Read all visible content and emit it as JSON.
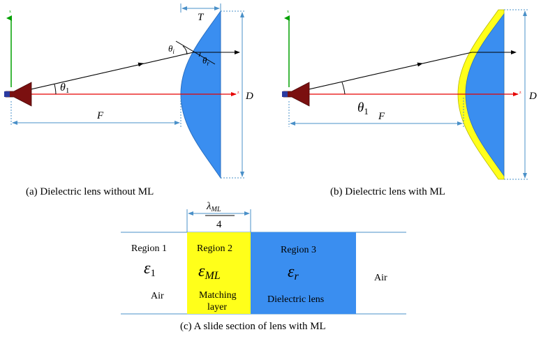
{
  "colors": {
    "lens_blue": "#3a8ef0",
    "matching_layer_yellow": "#ffff1a",
    "ray_red": "#e60000",
    "axis_green": "#00a000",
    "dimension_line": "#4a90c8",
    "horn_dark_red": "#7b1010"
  },
  "panel_a": {
    "caption": "(a) Dielectric lens without ML",
    "label_T": "T",
    "label_D": "D",
    "label_F": "F",
    "label_theta1": "θ",
    "label_theta1_sub": "1",
    "label_theta_i": "θ",
    "label_theta_i_sub": "i",
    "label_theta_r": "θ",
    "label_theta_r_sub": "r",
    "axis_x": "x",
    "axis_z": "z"
  },
  "panel_b": {
    "caption": "(b) Dielectric lens with ML",
    "label_D": "D",
    "label_F": "F",
    "label_theta1": "θ",
    "label_theta1_sub": "1",
    "axis_x": "x",
    "axis_z": "z"
  },
  "panel_c": {
    "caption": "(c) A slide section of lens with ML",
    "dim_numerator": "λ",
    "dim_numerator_sub": "ML",
    "dim_denominator": "4",
    "region1": {
      "title": "Region 1",
      "symbol": "ε",
      "symbol_sub": "1",
      "medium": "Air"
    },
    "region2": {
      "title": "Region 2",
      "symbol": "ε",
      "symbol_sub": "ML",
      "medium_line1": "Matching",
      "medium_line2": "layer"
    },
    "region3": {
      "title": "Region 3",
      "symbol": "ε",
      "symbol_sub": "r",
      "medium": "Dielectric lens"
    },
    "region4": {
      "medium": "Air"
    }
  }
}
